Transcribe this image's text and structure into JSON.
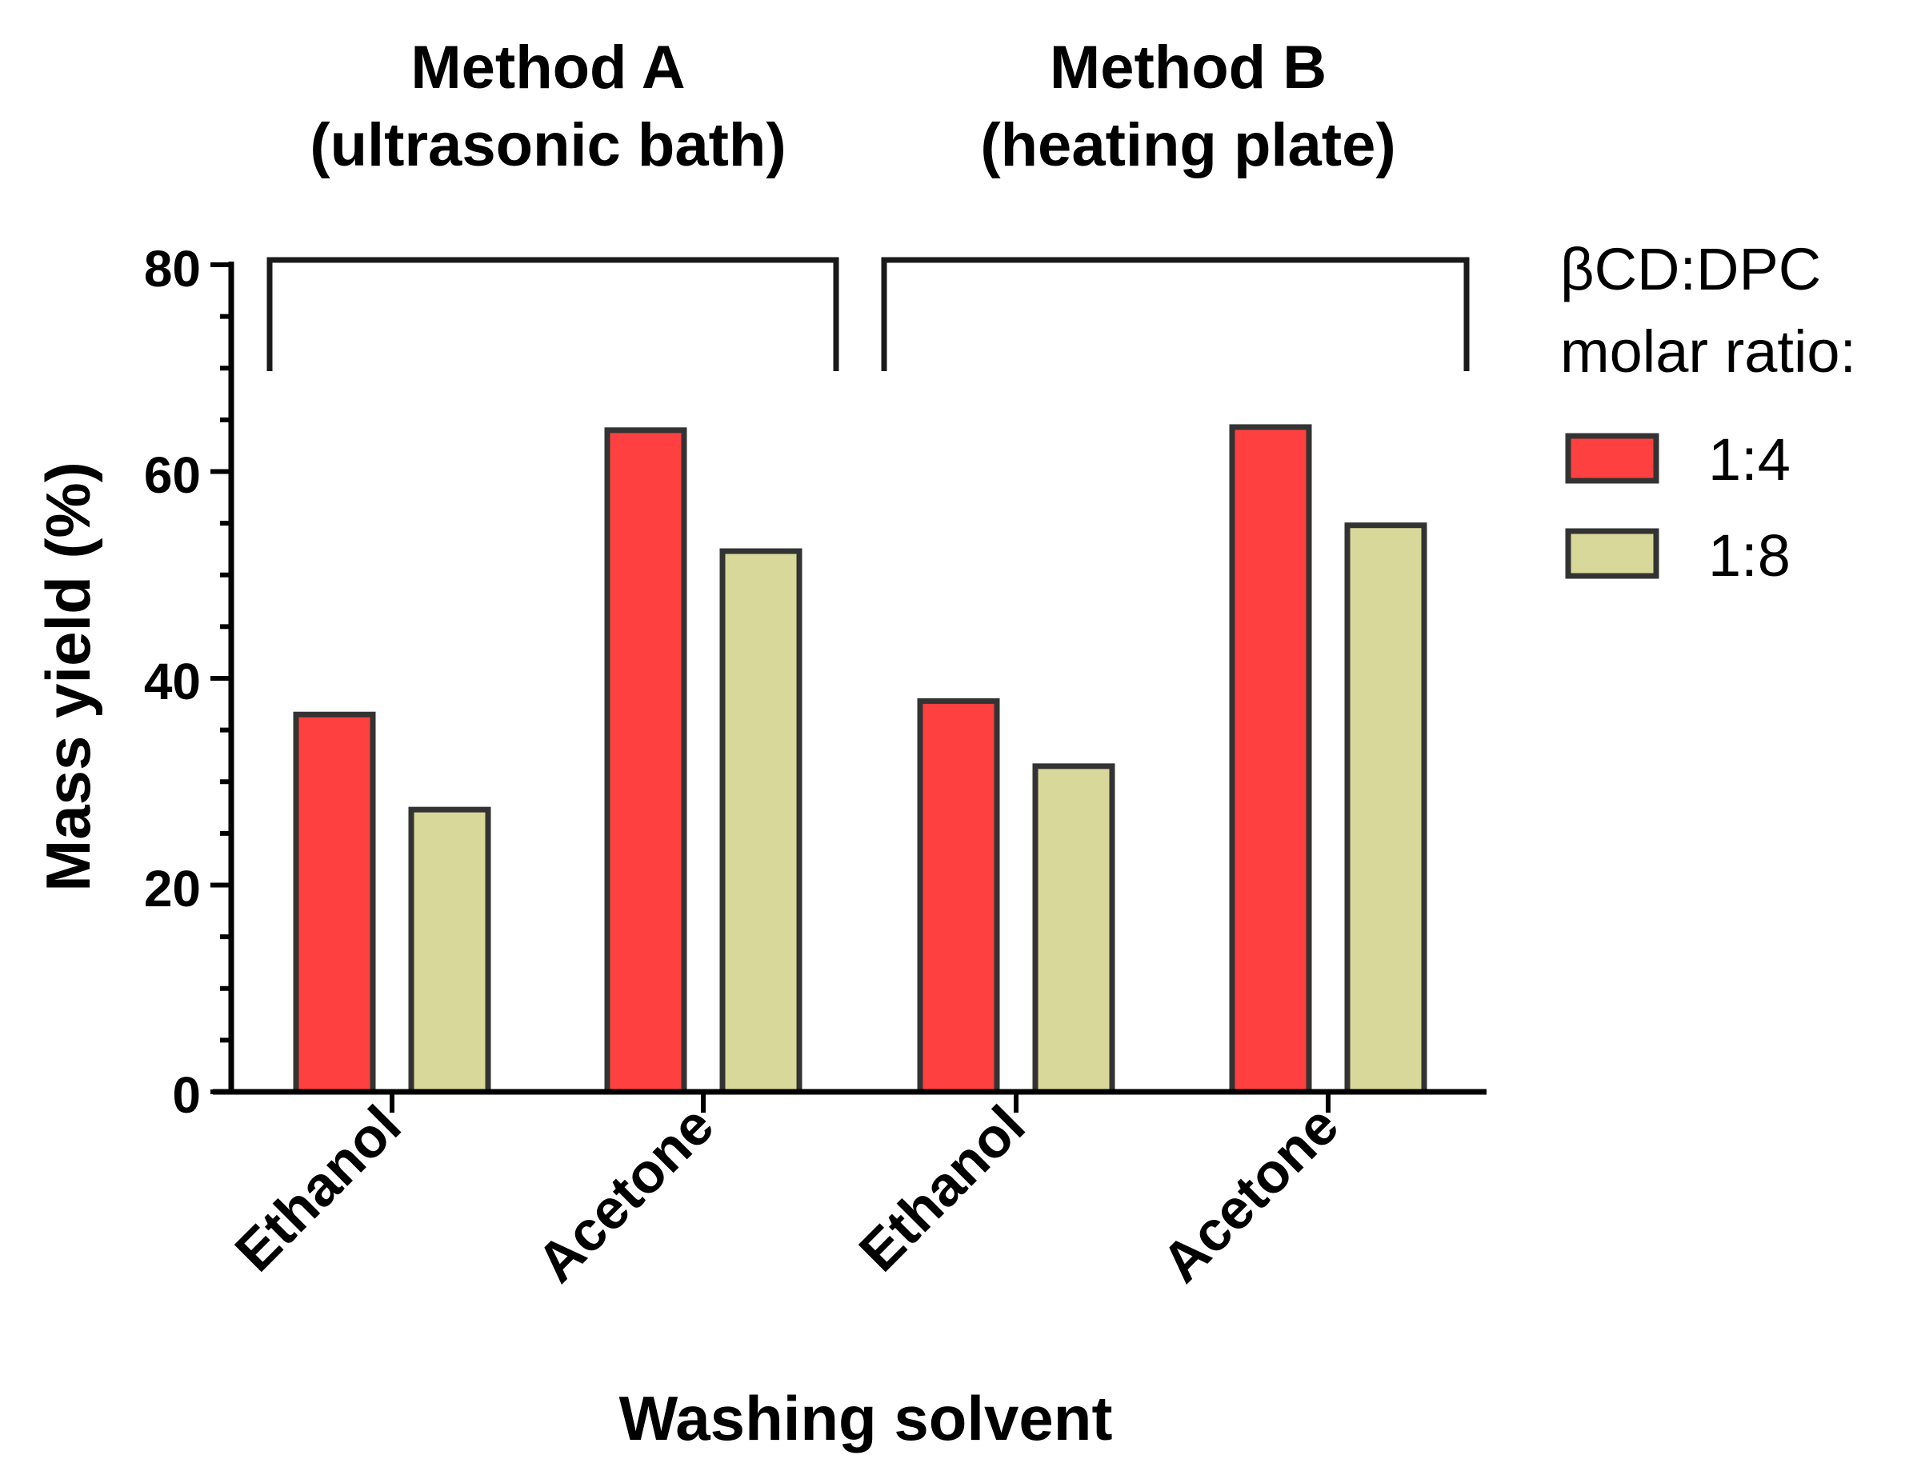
{
  "chart_data": {
    "type": "bar",
    "title": "",
    "ylabel": "Mass yield (%)",
    "xlabel": "Washing solvent",
    "ylim": [
      0,
      80
    ],
    "yticks": [
      0,
      20,
      40,
      60,
      80
    ],
    "y_minor_step": 5,
    "groups": [
      {
        "label_line1": "Method A",
        "label_line2": "(ultrasonic bath)",
        "categories": [
          "Ethanol",
          "Acetone"
        ]
      },
      {
        "label_line1": "Method B",
        "label_line2": "(heating plate)",
        "categories": [
          "Ethanol",
          "Acetone"
        ]
      }
    ],
    "categories": [
      "Ethanol",
      "Acetone",
      "Ethanol",
      "Acetone"
    ],
    "series": [
      {
        "name": "1:4",
        "color": "#ff4040",
        "values": [
          36.5,
          64,
          37.8,
          64.3
        ]
      },
      {
        "name": "1:8",
        "color": "#d8d89a",
        "values": [
          27.3,
          52.3,
          31.5,
          54.8
        ]
      }
    ],
    "legend": {
      "title_line1": "βCD:DPC",
      "title_line2": "molar ratio:",
      "placement": "right"
    }
  }
}
